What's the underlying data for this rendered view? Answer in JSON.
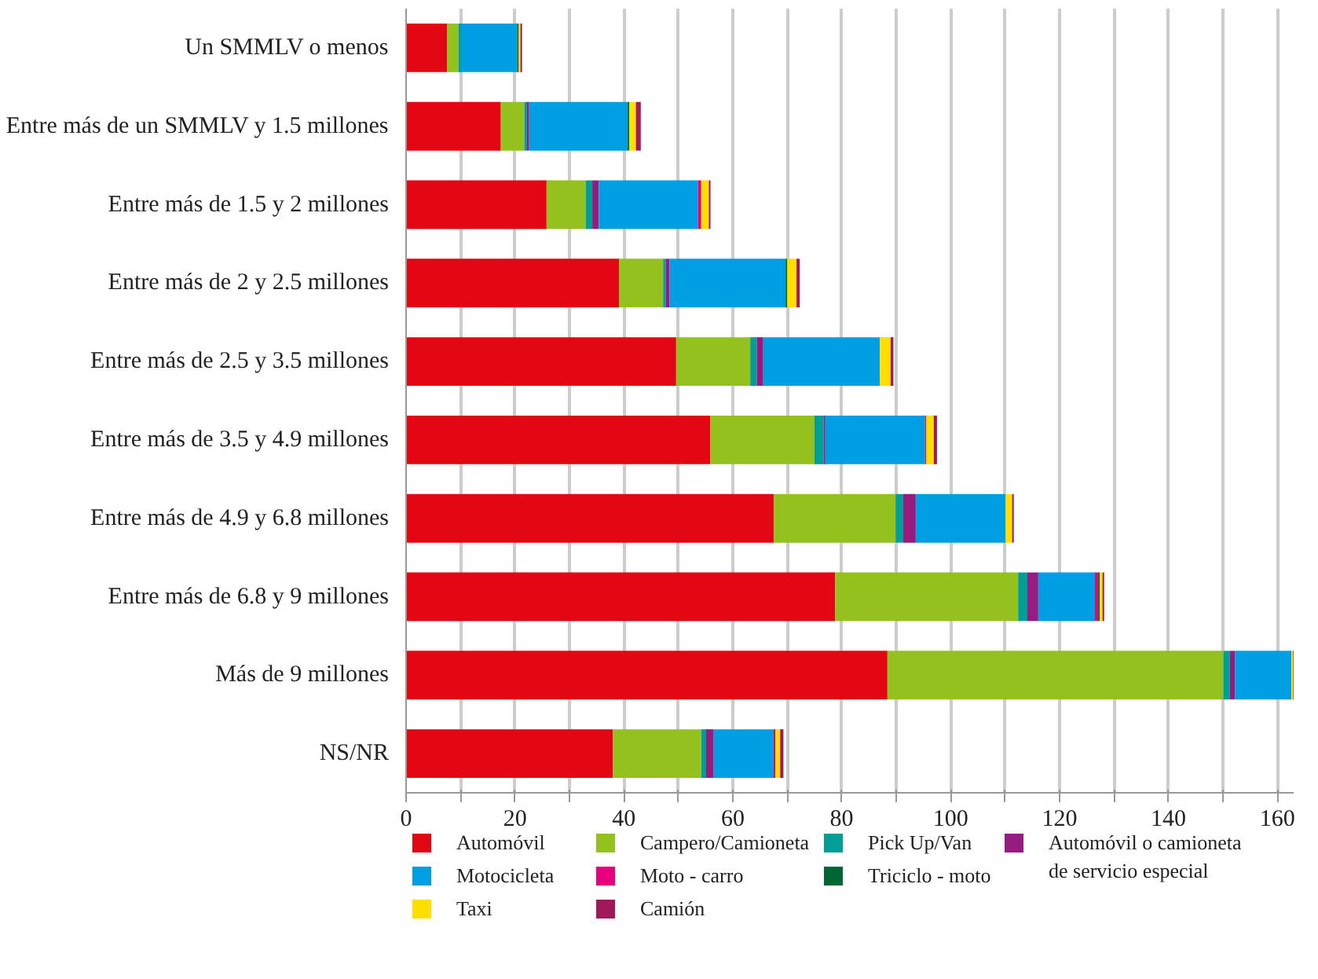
{
  "chart_data": {
    "type": "bar",
    "orientation": "horizontal",
    "stacked": true,
    "grid": "x",
    "legend": "bottom",
    "categories": [
      "Un SMMLV o menos",
      "Entre más de un SMMLV y 1.5 millones",
      "Entre más de 1.5 y 2 millones",
      "Entre más de 2 y 2.5 millones",
      "Entre más de 2.5 y 3.5 millones",
      "Entre más de 3.5 y 4.9 millones",
      "Entre más de 4.9 y 6.8 millones",
      "Entre más de 6.8 y 9 millones",
      "Más de 9 millones",
      "NS/NR"
    ],
    "xlim": [
      0,
      163
    ],
    "xticks": [
      0,
      {
        "value": 10,
        "label": null
      },
      20,
      {
        "value": 30,
        "label": null
      },
      40,
      {
        "value": 50,
        "label": null
      },
      60,
      {
        "value": 70,
        "label": null
      },
      80,
      {
        "value": 90,
        "label": null
      },
      100,
      {
        "value": 110,
        "label": null
      },
      120,
      {
        "value": 130,
        "label": null
      },
      140,
      {
        "value": 150,
        "label": null
      },
      160
    ],
    "series": [
      {
        "name": "Automóvil",
        "color": "#e30613",
        "values": [
          7.5,
          17.4,
          25.8,
          39.1,
          49.6,
          55.9,
          67.5,
          78.8,
          88.4,
          38.0
        ]
      },
      {
        "name": "Campero/Camioneta",
        "color": "#95c11f",
        "values": [
          2.1,
          4.3,
          7.2,
          8.1,
          13.6,
          19.1,
          22.4,
          33.6,
          61.7,
          16.2
        ]
      },
      {
        "name": "Pick Up/Van",
        "color": "#009e96",
        "values": [
          0.5,
          0.5,
          1.2,
          0.5,
          1.2,
          1.7,
          1.4,
          1.7,
          1.2,
          0.9
        ]
      },
      {
        "name": "Automóvil o camioneta de servicio especial",
        "color": "#951b81",
        "values": [
          0,
          0.4,
          1.2,
          0.7,
          1.2,
          0.3,
          2.3,
          2.0,
          0.9,
          1.4
        ]
      },
      {
        "name": "Motocicleta",
        "color": "#009fe3",
        "values": [
          10.3,
          18.1,
          18.2,
          21.3,
          21.4,
          18.3,
          16.5,
          10.4,
          10.4,
          11.0
        ]
      },
      {
        "name": "Moto - carro",
        "color": "#e6007e",
        "values": [
          0,
          0,
          0.6,
          0,
          0,
          0.2,
          0,
          0.6,
          0,
          0.3
        ]
      },
      {
        "name": "Triciclo - moto",
        "color": "#006633",
        "values": [
          0.3,
          0.3,
          0,
          0.3,
          0,
          0,
          0,
          0.3,
          0,
          0
        ]
      },
      {
        "name": "Taxi",
        "color": "#ffde00",
        "values": [
          0.3,
          1.2,
          1.4,
          1.7,
          2.0,
          1.4,
          1.2,
          0.5,
          0.3,
          0.9
        ]
      },
      {
        "name": "Camión",
        "color": "#a2195b",
        "values": [
          0.3,
          0.9,
          0.3,
          0.6,
          0.5,
          0.6,
          0.3,
          0.3,
          0.6,
          0.6
        ]
      }
    ]
  }
}
